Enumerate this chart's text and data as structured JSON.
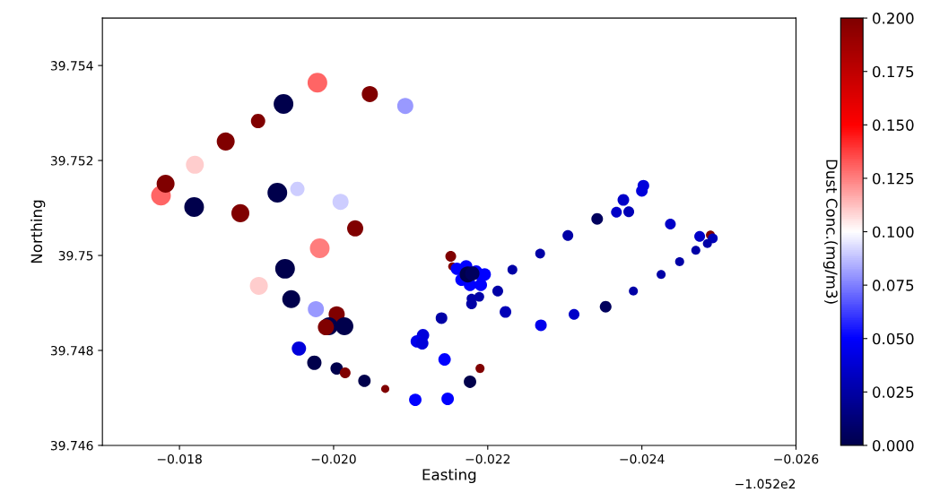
{
  "chart_data": {
    "type": "bubble",
    "xlabel": "Easting",
    "ylabel": "Northing",
    "clabel": "Dust Conc.(mg/m3)",
    "annotations": [
      "−1.052e2"
    ],
    "xlim": [
      -0.017,
      -0.026
    ],
    "ylim": [
      39.746,
      39.755
    ],
    "xticks": [
      {
        "value": -0.018,
        "label": "−0.018"
      },
      {
        "value": -0.02,
        "label": "−0.020"
      },
      {
        "value": -0.022,
        "label": "−0.022"
      },
      {
        "value": -0.024,
        "label": "−0.024"
      },
      {
        "value": -0.026,
        "label": "−0.026"
      }
    ],
    "yticks": [
      39.746,
      39.748,
      39.75,
      39.752,
      39.754
    ],
    "clim": [
      0,
      0.2
    ],
    "cticks": [
      {
        "value": 0,
        "label": "0.000"
      },
      {
        "value": 0.025,
        "label": "0.025"
      },
      {
        "value": 0.05,
        "label": "0.050"
      },
      {
        "value": 0.075,
        "label": "0.075"
      },
      {
        "value": 0.1,
        "label": "0.100"
      },
      {
        "value": 0.125,
        "label": "0.125"
      },
      {
        "value": 0.15,
        "label": "0.150"
      },
      {
        "value": 0.175,
        "label": "0.175"
      },
      {
        "value": 0.2,
        "label": "0.200"
      }
    ],
    "marker": "circle",
    "grid": false,
    "x": [
      -0.01776,
      -0.01782,
      -0.0182,
      -0.0186,
      -0.01902,
      -0.01935,
      -0.01979,
      -0.02047,
      -0.02093,
      -0.01819,
      -0.01879,
      -0.01927,
      -0.01953,
      -0.02009,
      -0.02028,
      -0.01982,
      -0.01937,
      -0.01903,
      -0.01945,
      -0.01977,
      -0.02004,
      -0.01994,
      -0.02014,
      -0.0199,
      -0.01955,
      -0.01975,
      -0.02004,
      -0.02015,
      -0.0204,
      -0.02067,
      -0.02106,
      -0.02148,
      -0.02177,
      -0.0219,
      -0.02144,
      -0.02116,
      -0.02108,
      -0.02115,
      -0.0214,
      -0.02223,
      -0.02213,
      -0.02232,
      -0.02268,
      -0.02304,
      -0.02342,
      -0.02367,
      -0.02376,
      -0.02383,
      -0.024,
      -0.02402,
      -0.02437,
      -0.02475,
      -0.02489,
      -0.02492,
      -0.02485,
      -0.0247,
      -0.02449,
      -0.02425,
      -0.02389,
      -0.02353,
      -0.02312,
      -0.02269,
      -0.02179,
      -0.02189,
      -0.02179,
      -0.02152,
      -0.02154,
      -0.0216,
      -0.02166,
      -0.02177,
      -0.02191,
      -0.02192,
      -0.02172,
      -0.02185,
      -0.02196,
      -0.02174,
      -0.0218
    ],
    "values": [
      39.75126,
      39.75151,
      39.75191,
      39.7524,
      39.75283,
      39.75319,
      39.75364,
      39.7534,
      39.75315,
      39.75102,
      39.75089,
      39.75132,
      39.7514,
      39.75113,
      39.75057,
      39.75015,
      39.74972,
      39.74936,
      39.74908,
      39.74887,
      39.74876,
      39.74851,
      39.74851,
      39.74849,
      39.74804,
      39.74774,
      39.74762,
      39.74753,
      39.74736,
      39.74719,
      39.74696,
      39.74698,
      39.74734,
      39.74762,
      39.74781,
      39.74832,
      39.74819,
      39.74815,
      39.74868,
      39.74881,
      39.74925,
      39.7497,
      39.75004,
      39.75042,
      39.75077,
      39.75091,
      39.75117,
      39.75092,
      39.75136,
      39.75147,
      39.75066,
      39.7504,
      39.75043,
      39.75036,
      39.75025,
      39.75011,
      39.74987,
      39.7496,
      39.74925,
      39.74892,
      39.74876,
      39.74853,
      39.74898,
      39.74913,
      39.74909,
      39.74998,
      39.74977,
      39.74972,
      39.74949,
      39.74938,
      39.74938,
      39.74957,
      39.74977,
      39.74966,
      39.7496,
      39.7496,
      39.74962
    ],
    "cvalues": [
      0.13,
      0.2,
      0.11,
      0.2,
      0.2,
      0,
      0.13,
      0.2,
      0.08,
      0,
      0.2,
      0,
      0.09,
      0.09,
      0.2,
      0.125,
      0,
      0.11,
      0,
      0.08,
      0.2,
      0,
      0,
      0.2,
      0.04,
      0,
      0,
      0.2,
      0,
      0.2,
      0.05,
      0.05,
      0,
      0.2,
      0.05,
      0.04,
      0.045,
      0.04,
      0.025,
      0.03,
      0.025,
      0.025,
      0.025,
      0.025,
      0.005,
      0.035,
      0.035,
      0.03,
      0.04,
      0.04,
      0.035,
      0.035,
      0.2,
      0.03,
      0.025,
      0.025,
      0.025,
      0.025,
      0.025,
      0.005,
      0.035,
      0.045,
      0.025,
      0.025,
      0.025,
      0.2,
      0.2,
      0.05,
      0.05,
      0.05,
      0.05,
      0.05,
      0.05,
      0.05,
      0.05,
      0,
      0.005
    ],
    "sizes": [
      1,
      0.83,
      0.83,
      0.83,
      0.53,
      1,
      1,
      0.67,
      0.67,
      1,
      0.83,
      1,
      0.53,
      0.67,
      0.67,
      1,
      1,
      0.83,
      0.83,
      0.67,
      0.67,
      0.83,
      0.83,
      0.67,
      0.53,
      0.53,
      0.4,
      0.3,
      0.4,
      0.17,
      0.4,
      0.4,
      0.4,
      0.21,
      0.4,
      0.4,
      0.4,
      0.4,
      0.35,
      0.35,
      0.3,
      0.25,
      0.25,
      0.3,
      0.35,
      0.3,
      0.35,
      0.3,
      0.35,
      0.35,
      0.3,
      0.3,
      0.21,
      0.25,
      0.21,
      0.21,
      0.21,
      0.21,
      0.21,
      0.35,
      0.3,
      0.35,
      0.3,
      0.25,
      0.25,
      0.3,
      0.17,
      0.4,
      0.4,
      0.4,
      0.4,
      0.4,
      0.4,
      0.4,
      0.4,
      0.67,
      0.53
    ]
  }
}
